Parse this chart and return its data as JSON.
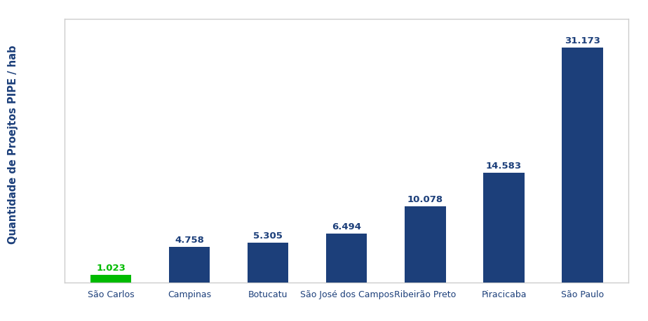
{
  "categories": [
    "São Carlos",
    "Campinas",
    "Botucatu",
    "São José dos Campos",
    "Ribeirão Preto",
    "Piracicaba",
    "São Paulo"
  ],
  "values": [
    1.023,
    4.758,
    5.305,
    6.494,
    10.078,
    14.583,
    31.173
  ],
  "bar_colors": [
    "#00bb00",
    "#1c3f7a",
    "#1c3f7a",
    "#1c3f7a",
    "#1c3f7a",
    "#1c3f7a",
    "#1c3f7a"
  ],
  "label_colors": [
    "#00bb00",
    "#1c3f7a",
    "#1c3f7a",
    "#1c3f7a",
    "#1c3f7a",
    "#1c3f7a",
    "#1c3f7a"
  ],
  "ylabel": "Quantidade de Proejtos PIPE / hab",
  "ylabel_color": "#1c3f7a",
  "xticklabel_color": "#1c3f7a",
  "background_color": "#ffffff",
  "plot_bg_color": "#ffffff",
  "frame_color": "#cccccc",
  "value_fontsize": 9.5,
  "xlabel_fontsize": 9,
  "ylabel_fontsize": 10.5,
  "bar_width": 0.52,
  "ylim": [
    0,
    35
  ]
}
